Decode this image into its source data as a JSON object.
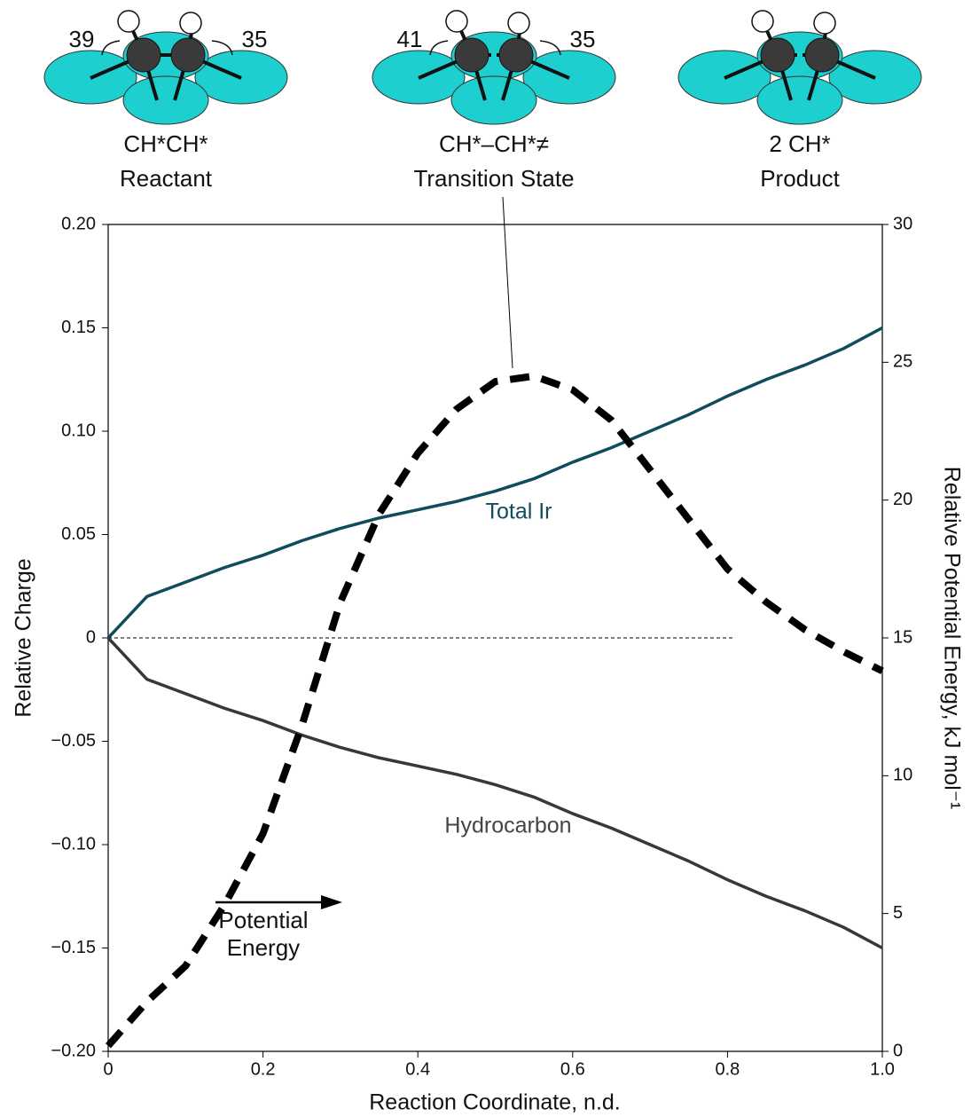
{
  "chart_data": {
    "type": "line",
    "xlabel": "Reaction Coordinate, n.d.",
    "ylabel": "Relative Charge",
    "y2label": "Relative Potential Energy, kJ mol⁻¹",
    "xlim": [
      0,
      1.0
    ],
    "xticks": [
      0,
      0.2,
      0.4,
      0.6,
      0.8,
      {
        "value": 1.0,
        "label": "1.0"
      }
    ],
    "ylim": [
      -0.2,
      0.2
    ],
    "yticks": [
      {
        "value": -0.2,
        "label": "−0.20"
      },
      {
        "value": -0.15,
        "label": "−0.15"
      },
      {
        "value": -0.1,
        "label": "−0.10"
      },
      {
        "value": -0.05,
        "label": "−0.05"
      },
      0,
      0.05,
      {
        "value": 0.1,
        "label": "0.10"
      },
      0.15,
      {
        "value": 0.2,
        "label": "0.20"
      }
    ],
    "y2lim": [
      0,
      30
    ],
    "y2ticks": [
      0,
      5,
      10,
      15,
      20,
      25,
      30
    ],
    "reference_line": {
      "y": 0,
      "x": [
        0,
        0.81
      ]
    },
    "x": [
      0,
      0.05,
      0.1,
      0.15,
      0.2,
      0.25,
      0.3,
      0.35,
      0.4,
      0.45,
      0.5,
      0.55,
      0.6,
      0.65,
      0.7,
      0.75,
      0.8,
      0.85,
      0.9,
      0.95,
      1.0
    ],
    "series": [
      {
        "name": "Total Ir",
        "color": "#0f4c5c",
        "values": [
          0,
          0.02,
          0.027,
          0.034,
          0.04,
          0.047,
          0.053,
          0.058,
          0.062,
          0.066,
          0.071,
          0.077,
          0.085,
          0.092,
          0.1,
          0.108,
          0.117,
          0.125,
          0.132,
          0.14,
          0.15
        ]
      },
      {
        "name": "Hydrocarbon",
        "color": "#383838",
        "values": [
          0,
          -0.02,
          -0.027,
          -0.034,
          -0.04,
          -0.047,
          -0.053,
          -0.058,
          -0.062,
          -0.066,
          -0.071,
          -0.077,
          -0.085,
          -0.092,
          -0.1,
          -0.108,
          -0.117,
          -0.125,
          -0.132,
          -0.14,
          -0.15
        ]
      },
      {
        "name": "Potential Energy",
        "color": "#000000",
        "axis": "y2",
        "dashed": true,
        "values": [
          0.2,
          1.8,
          3.1,
          5.3,
          7.9,
          11.8,
          16.3,
          19.5,
          21.7,
          23.3,
          24.3,
          24.5,
          24.0,
          22.9,
          21.1,
          19.3,
          17.5,
          16.3,
          15.3,
          14.5,
          13.8
        ]
      }
    ]
  },
  "structures": [
    {
      "name": "CH*CH*",
      "label": "Reactant",
      "left": "39",
      "right": "35"
    },
    {
      "name": "CH*–CH*≠",
      "label": "Transition State",
      "left": "41",
      "right": "35"
    },
    {
      "name": "2 CH*",
      "label": "Product"
    }
  ]
}
